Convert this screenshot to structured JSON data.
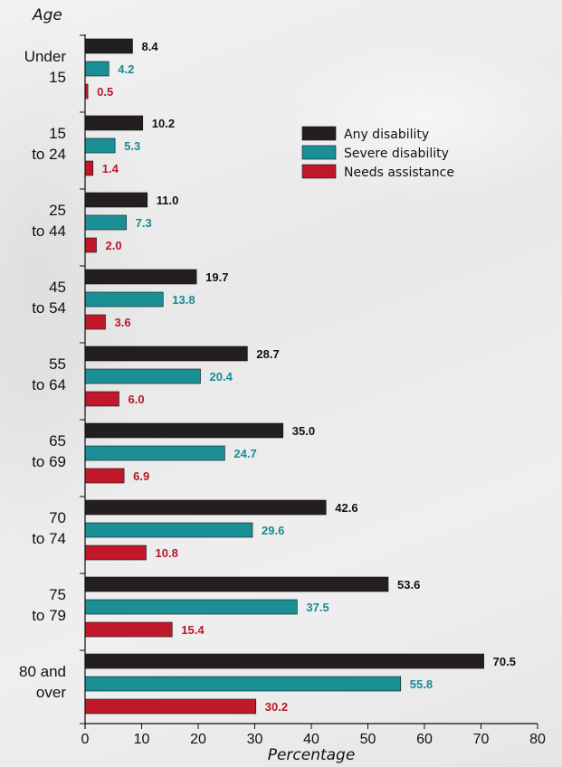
{
  "chart_data": {
    "type": "bar",
    "orientation": "horizontal",
    "title": "",
    "ylabel": "Age",
    "xlabel": "Percentage",
    "xlim": [
      0,
      80
    ],
    "xticks": [
      0,
      10,
      20,
      30,
      40,
      50,
      60,
      70,
      80
    ],
    "grid": false,
    "legend_position": "top-right",
    "categories": [
      [
        "Under",
        "15"
      ],
      [
        "15",
        "to 24"
      ],
      [
        "25",
        "to 44"
      ],
      [
        "45",
        "to 54"
      ],
      [
        "55",
        "to 64"
      ],
      [
        "65",
        "to 69"
      ],
      [
        "70",
        "to 74"
      ],
      [
        "75",
        "to 79"
      ],
      [
        "80 and",
        "over"
      ]
    ],
    "series": [
      {
        "name": "Any disability",
        "color": "#231f20",
        "label_color": "#111111",
        "values": [
          8.4,
          10.2,
          11.0,
          19.7,
          28.7,
          35.0,
          42.6,
          53.6,
          70.5
        ]
      },
      {
        "name": "Severe disability",
        "color": "#1a9096",
        "label_color": "#1a8a92",
        "values": [
          4.2,
          5.3,
          7.3,
          13.8,
          20.4,
          24.7,
          29.6,
          37.5,
          55.8
        ]
      },
      {
        "name": "Needs assistance",
        "color": "#c0182a",
        "label_color": "#b8182a",
        "values": [
          0.5,
          1.4,
          2.0,
          3.6,
          6.0,
          6.9,
          10.8,
          15.4,
          30.2
        ]
      }
    ]
  }
}
